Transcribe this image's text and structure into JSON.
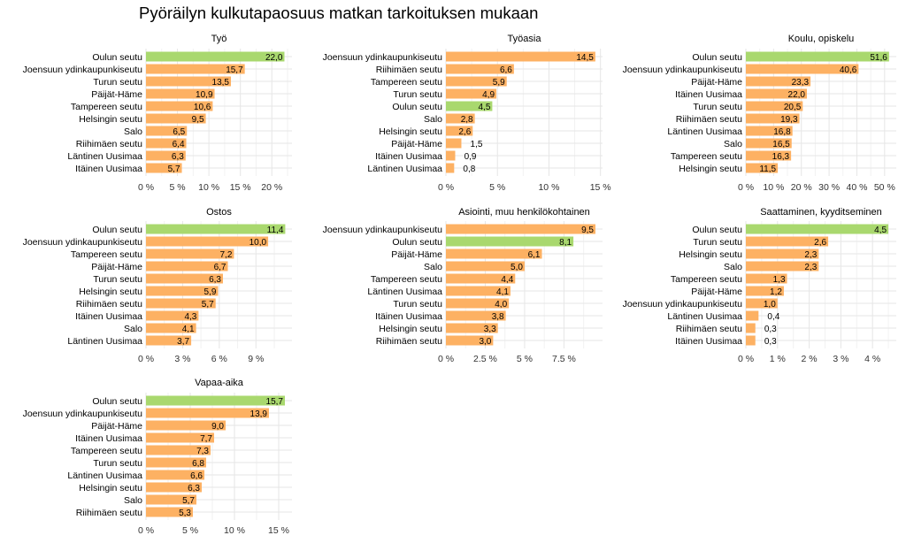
{
  "title": "Pyöräilyn kulkutapaosuus matkan tarkoituksen mukaan",
  "colors": {
    "highlight": "#A9D86E",
    "bar": "#FDB163",
    "grid": "#E6E6E6",
    "text": "#000000",
    "axis_text": "#333333"
  },
  "chart_data": [
    {
      "type": "bar",
      "orientation": "horizontal",
      "title": "Työ",
      "categories": [
        "Oulun seutu",
        "Joensuun ydinkaupunkiseutu",
        "Turun seutu",
        "Päijät-Häme",
        "Tampereen seutu",
        "Helsingin seutu",
        "Salo",
        "Riihimäen seutu",
        "Läntinen Uusimaa",
        "Itäinen Uusimaa"
      ],
      "values": [
        22.0,
        15.7,
        13.5,
        10.9,
        10.6,
        9.5,
        6.5,
        6.4,
        6.3,
        5.7
      ],
      "value_labels": [
        "22,0",
        "15,7",
        "13,5",
        "10,9",
        "10,6",
        "9,5",
        "6,5",
        "6,4",
        "6,3",
        "5,7"
      ],
      "highlight": [
        0
      ],
      "xticks": [
        0,
        5,
        10,
        15,
        20
      ],
      "xtick_labels": [
        "0 %",
        "5 %",
        "10 %",
        "15 %",
        "20 %"
      ],
      "xlim": [
        0,
        23.2
      ]
    },
    {
      "type": "bar",
      "orientation": "horizontal",
      "title": "Työasia",
      "categories": [
        "Joensuun ydinkaupunkiseutu",
        "Riihimäen seutu",
        "Tampereen seutu",
        "Turun seutu",
        "Oulun seutu",
        "Salo",
        "Helsingin seutu",
        "Päijät-Häme",
        "Itäinen Uusimaa",
        "Läntinen Uusimaa"
      ],
      "values": [
        14.5,
        6.6,
        5.9,
        4.9,
        4.5,
        2.8,
        2.6,
        1.5,
        0.9,
        0.8
      ],
      "value_labels": [
        "14,5",
        "6,6",
        "5,9",
        "4,9",
        "4,5",
        "2,8",
        "2,6",
        "1,5",
        "0,9",
        "0,8"
      ],
      "highlight": [
        4
      ],
      "xticks": [
        0,
        5,
        10,
        15
      ],
      "xtick_labels": [
        "0 %",
        "5 %",
        "10 %",
        "15 %"
      ],
      "xlim": [
        0,
        15.2
      ]
    },
    {
      "type": "bar",
      "orientation": "horizontal",
      "title": "Koulu, opiskelu",
      "categories": [
        "Oulun seutu",
        "Joensuun ydinkaupunkiseutu",
        "Päijät-Häme",
        "Itäinen Uusimaa",
        "Turun seutu",
        "Riihimäen seutu",
        "Läntinen Uusimaa",
        "Salo",
        "Tampereen seutu",
        "Helsingin seutu"
      ],
      "values": [
        51.6,
        40.6,
        23.3,
        22.0,
        20.5,
        19.3,
        16.8,
        16.5,
        16.3,
        11.5
      ],
      "value_labels": [
        "51,6",
        "40,6",
        "23,3",
        "22,0",
        "20,5",
        "19,3",
        "16,8",
        "16,5",
        "16,3",
        "11,5"
      ],
      "highlight": [
        0
      ],
      "xticks": [
        0,
        10,
        20,
        30,
        40,
        50
      ],
      "xtick_labels": [
        "0 %",
        "10 %",
        "20 %",
        "30 %",
        "40 %",
        "50 %"
      ],
      "xlim": [
        0,
        54.2
      ]
    },
    {
      "type": "bar",
      "orientation": "horizontal",
      "title": "Ostos",
      "categories": [
        "Oulun seutu",
        "Joensuun ydinkaupunkiseutu",
        "Tampereen seutu",
        "Päijät-Häme",
        "Turun seutu",
        "Helsingin seutu",
        "Riihimäen seutu",
        "Itäinen Uusimaa",
        "Salo",
        "Läntinen Uusimaa"
      ],
      "values": [
        11.4,
        10.0,
        7.2,
        6.7,
        6.3,
        5.9,
        5.7,
        4.3,
        4.1,
        3.7
      ],
      "value_labels": [
        "11,4",
        "10,0",
        "7,2",
        "6,7",
        "6,3",
        "5,9",
        "5,7",
        "4,3",
        "4,1",
        "3,7"
      ],
      "highlight": [
        0
      ],
      "xticks": [
        0,
        3,
        6,
        9
      ],
      "xtick_labels": [
        "0 %",
        "3 %",
        "6 %",
        "9 %"
      ],
      "xlim": [
        0,
        11.95
      ]
    },
    {
      "type": "bar",
      "orientation": "horizontal",
      "title": "Asiointi, muu henkilökohtainen",
      "categories": [
        "Joensuun ydinkaupunkiseutu",
        "Oulun seutu",
        "Päijät-Häme",
        "Salo",
        "Tampereen seutu",
        "Läntinen Uusimaa",
        "Turun seutu",
        "Itäinen Uusimaa",
        "Helsingin seutu",
        "Riihimäen seutu"
      ],
      "values": [
        9.5,
        8.1,
        6.1,
        5.0,
        4.4,
        4.1,
        4.0,
        3.8,
        3.3,
        3.0
      ],
      "value_labels": [
        "9,5",
        "8,1",
        "6,1",
        "5,0",
        "4,4",
        "4,1",
        "4,0",
        "3,8",
        "3,3",
        "3,0"
      ],
      "highlight": [
        1
      ],
      "xticks": [
        0,
        2.5,
        5,
        7.5
      ],
      "xtick_labels": [
        "0 %",
        "2.5 %",
        "5 %",
        "7.5 %"
      ],
      "xlim": [
        0,
        9.95
      ]
    },
    {
      "type": "bar",
      "orientation": "horizontal",
      "title": "Saattaminen, kyyditseminen",
      "categories": [
        "Oulun seutu",
        "Turun seutu",
        "Helsingin seutu",
        "Salo",
        "Tampereen seutu",
        "Päijät-Häme",
        "Joensuun ydinkaupunkiseutu",
        "Läntinen Uusimaa",
        "Riihimäen seutu",
        "Itäinen Uusimaa"
      ],
      "values": [
        4.5,
        2.6,
        2.3,
        2.3,
        1.3,
        1.2,
        1.0,
        0.4,
        0.3,
        0.3
      ],
      "value_labels": [
        "4,5",
        "2,6",
        "2,3",
        "2,3",
        "1,3",
        "1,2",
        "1,0",
        "0,4",
        "0,3",
        "0,3"
      ],
      "highlight": [
        0
      ],
      "xticks": [
        0,
        1,
        2,
        3,
        4
      ],
      "xtick_labels": [
        "0 %",
        "1 %",
        "2 %",
        "3 %",
        "4 %"
      ],
      "xlim": [
        0,
        4.75
      ]
    },
    {
      "type": "bar",
      "orientation": "horizontal",
      "title": "Vapaa-aika",
      "categories": [
        "Oulun seutu",
        "Joensuun ydinkaupunkiseutu",
        "Päijät-Häme",
        "Itäinen Uusimaa",
        "Tampereen seutu",
        "Turun seutu",
        "Läntinen Uusimaa",
        "Helsingin seutu",
        "Salo",
        "Riihimäen seutu"
      ],
      "values": [
        15.7,
        13.9,
        9.0,
        7.7,
        7.3,
        6.8,
        6.6,
        6.3,
        5.7,
        5.3
      ],
      "value_labels": [
        "15,7",
        "13,9",
        "9,0",
        "7,7",
        "7,3",
        "6,8",
        "6,6",
        "6,3",
        "5,7",
        "5,3"
      ],
      "highlight": [
        0
      ],
      "xticks": [
        0,
        5,
        10,
        15
      ],
      "xtick_labels": [
        "0 %",
        "5 %",
        "10 %",
        "15 %"
      ],
      "xlim": [
        0,
        16.5
      ]
    }
  ]
}
